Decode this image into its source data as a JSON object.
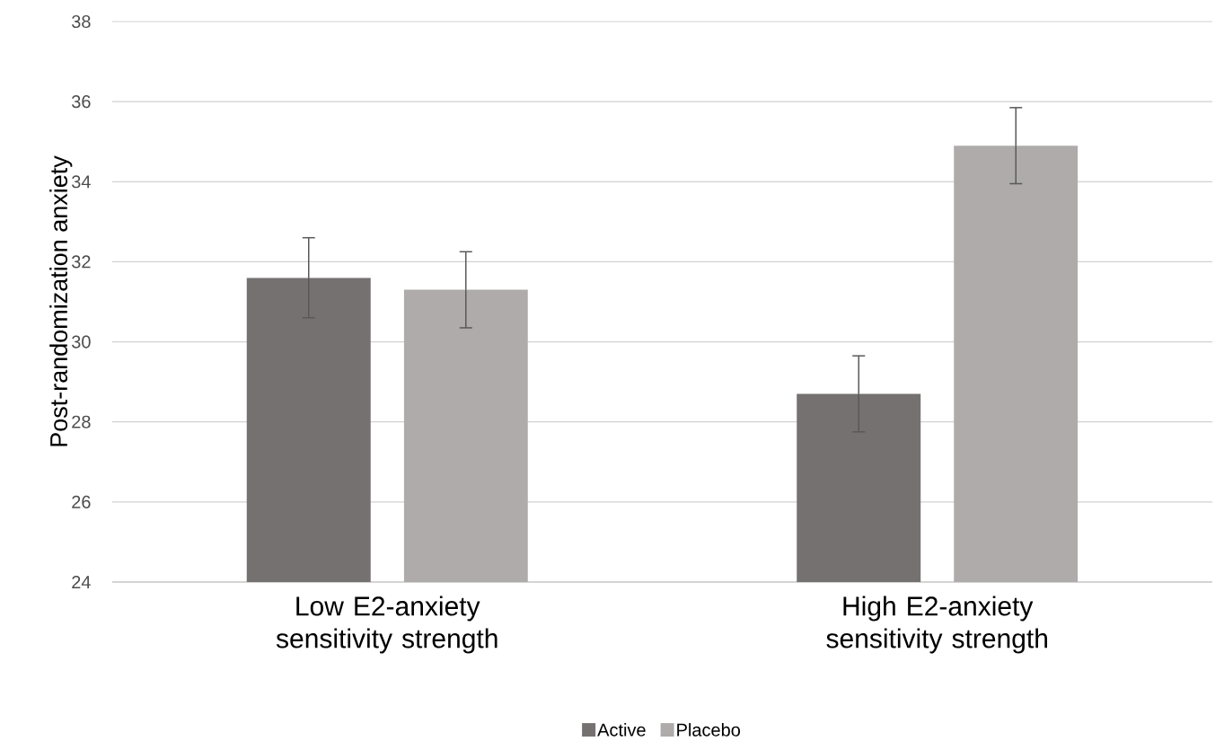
{
  "chart_data": {
    "type": "bar",
    "ylabel": "Post-randomization anxiety",
    "categories": [
      "Low E2-anxiety sensitivity strength",
      "High E2-anxiety sensitivity strength"
    ],
    "series": [
      {
        "name": "Active",
        "color": "#767171",
        "values": [
          31.6,
          28.7
        ],
        "errors": [
          1.0,
          0.95
        ]
      },
      {
        "name": "Placebo",
        "color": "#afabab",
        "values": [
          31.3,
          34.9
        ],
        "errors": [
          0.95,
          0.95
        ]
      }
    ],
    "ylim": [
      24,
      38
    ],
    "yticks": [
      24,
      26,
      28,
      30,
      32,
      34,
      36,
      38
    ],
    "grid": "y",
    "legend": "bottom"
  }
}
